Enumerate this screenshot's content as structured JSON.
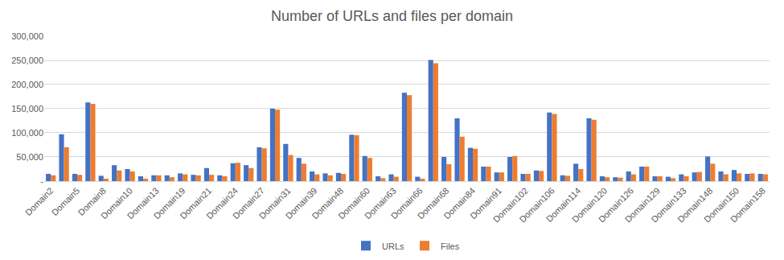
{
  "chart_data": {
    "type": "bar",
    "title": "Number of URLs and files per domain",
    "categories": [
      "Domain2",
      null,
      "Domain5",
      null,
      "Domain8",
      null,
      "Domain10",
      null,
      "Domain13",
      null,
      "Domain19",
      null,
      "Domain21",
      null,
      "Domain24",
      null,
      "Domain27",
      null,
      "Domain31",
      null,
      "Domain39",
      null,
      "Domain48",
      null,
      "Domain60",
      null,
      "Domain63",
      null,
      "Domain66",
      null,
      "Domain68",
      null,
      "Domain84",
      null,
      "Domain91",
      null,
      "Domain102",
      null,
      "Domain106",
      null,
      "Domain114",
      null,
      "Domain120",
      null,
      "Domain126",
      null,
      "Domain129",
      null,
      "Domain133",
      null,
      "Domain148",
      null,
      "Domain150",
      null,
      "Domain158"
    ],
    "series": [
      {
        "name": "URLs",
        "color": "#4472c4",
        "values": [
          15000,
          97000,
          15000,
          163000,
          11000,
          33000,
          25000,
          10000,
          12000,
          12000,
          16000,
          13000,
          27000,
          12000,
          37000,
          33000,
          70000,
          150000,
          77000,
          48000,
          20000,
          16000,
          17000,
          96000,
          52000,
          10000,
          14000,
          183000,
          9000,
          251000,
          50000,
          130000,
          69000,
          30000,
          18000,
          50000,
          15000,
          22000,
          142000,
          12000,
          36000,
          130000,
          10000,
          8000,
          20000,
          30000,
          10000,
          9000,
          14000,
          18000,
          51000,
          20000,
          23000,
          15000,
          15000
        ]
      },
      {
        "name": "Files",
        "color": "#ed7d31",
        "values": [
          12000,
          70000,
          13000,
          160000,
          5000,
          22000,
          20000,
          5000,
          12000,
          8000,
          14000,
          12000,
          13000,
          10000,
          38000,
          27000,
          68000,
          148000,
          54000,
          36000,
          14000,
          12000,
          15000,
          95000,
          48000,
          6000,
          9000,
          178000,
          5000,
          244000,
          35000,
          92000,
          67000,
          30000,
          18000,
          52000,
          15000,
          21000,
          139000,
          11000,
          25000,
          127000,
          8000,
          7000,
          14000,
          30000,
          10000,
          6000,
          10000,
          19000,
          36000,
          14000,
          16000,
          16000,
          14000
        ]
      }
    ],
    "ylim": [
      0,
      300000
    ],
    "yticks": [
      {
        "value": 0,
        "label": "-"
      },
      {
        "value": 50000,
        "label": "50,000"
      },
      {
        "value": 100000,
        "label": "100,000"
      },
      {
        "value": 150000,
        "label": "150,000"
      },
      {
        "value": 200000,
        "label": "200,000"
      },
      {
        "value": 250000,
        "label": "250,000"
      },
      {
        "value": 300000,
        "label": "300,000"
      }
    ],
    "grid": true,
    "legend": "bottom"
  }
}
